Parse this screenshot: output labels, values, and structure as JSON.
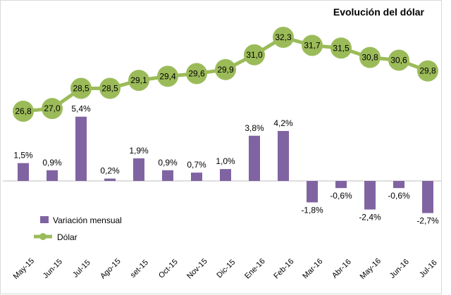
{
  "chart_data": {
    "type": "bar+line",
    "title": "Evolución del dólar",
    "categories": [
      "May-15",
      "Jun-15",
      "Jul-15",
      "Ago-15",
      "set-15",
      "Oct-15",
      "Nov-15",
      "Dic-15",
      "Ene-16",
      "Feb-16",
      "Mar-16",
      "Abr-16",
      "May-16",
      "Jun-16",
      "Jul-16"
    ],
    "series": [
      {
        "name": "Variación mensual",
        "kind": "bar",
        "color": "#8064a2",
        "values": [
          1.5,
          0.9,
          5.4,
          0.2,
          1.9,
          0.9,
          0.7,
          1.0,
          3.8,
          4.2,
          -1.8,
          -0.6,
          -2.4,
          -0.6,
          -2.7
        ],
        "labels": [
          "1,5%",
          "0,9%",
          "5,4%",
          "0,2%",
          "1,9%",
          "0,9%",
          "0,7%",
          "1,0%",
          "3,8%",
          "4,2%",
          "-1,8%",
          "-0,6%",
          "-2,4%",
          "-0,6%",
          "-2,7%"
        ]
      },
      {
        "name": "Dólar",
        "kind": "line",
        "color": "#9bbb59",
        "values": [
          26.8,
          27.0,
          28.5,
          28.5,
          29.1,
          29.4,
          29.6,
          29.9,
          31.0,
          32.3,
          31.7,
          31.5,
          30.8,
          30.6,
          29.8
        ],
        "labels": [
          "26,8",
          "27,0",
          "28,5",
          "28,5",
          "29,1",
          "29,4",
          "29,6",
          "29,9",
          "31,0",
          "32,3",
          "31,7",
          "31,5",
          "30,8",
          "30,6",
          "29,8"
        ]
      }
    ],
    "legend": {
      "position": "bottom-left"
    },
    "grid": false
  }
}
